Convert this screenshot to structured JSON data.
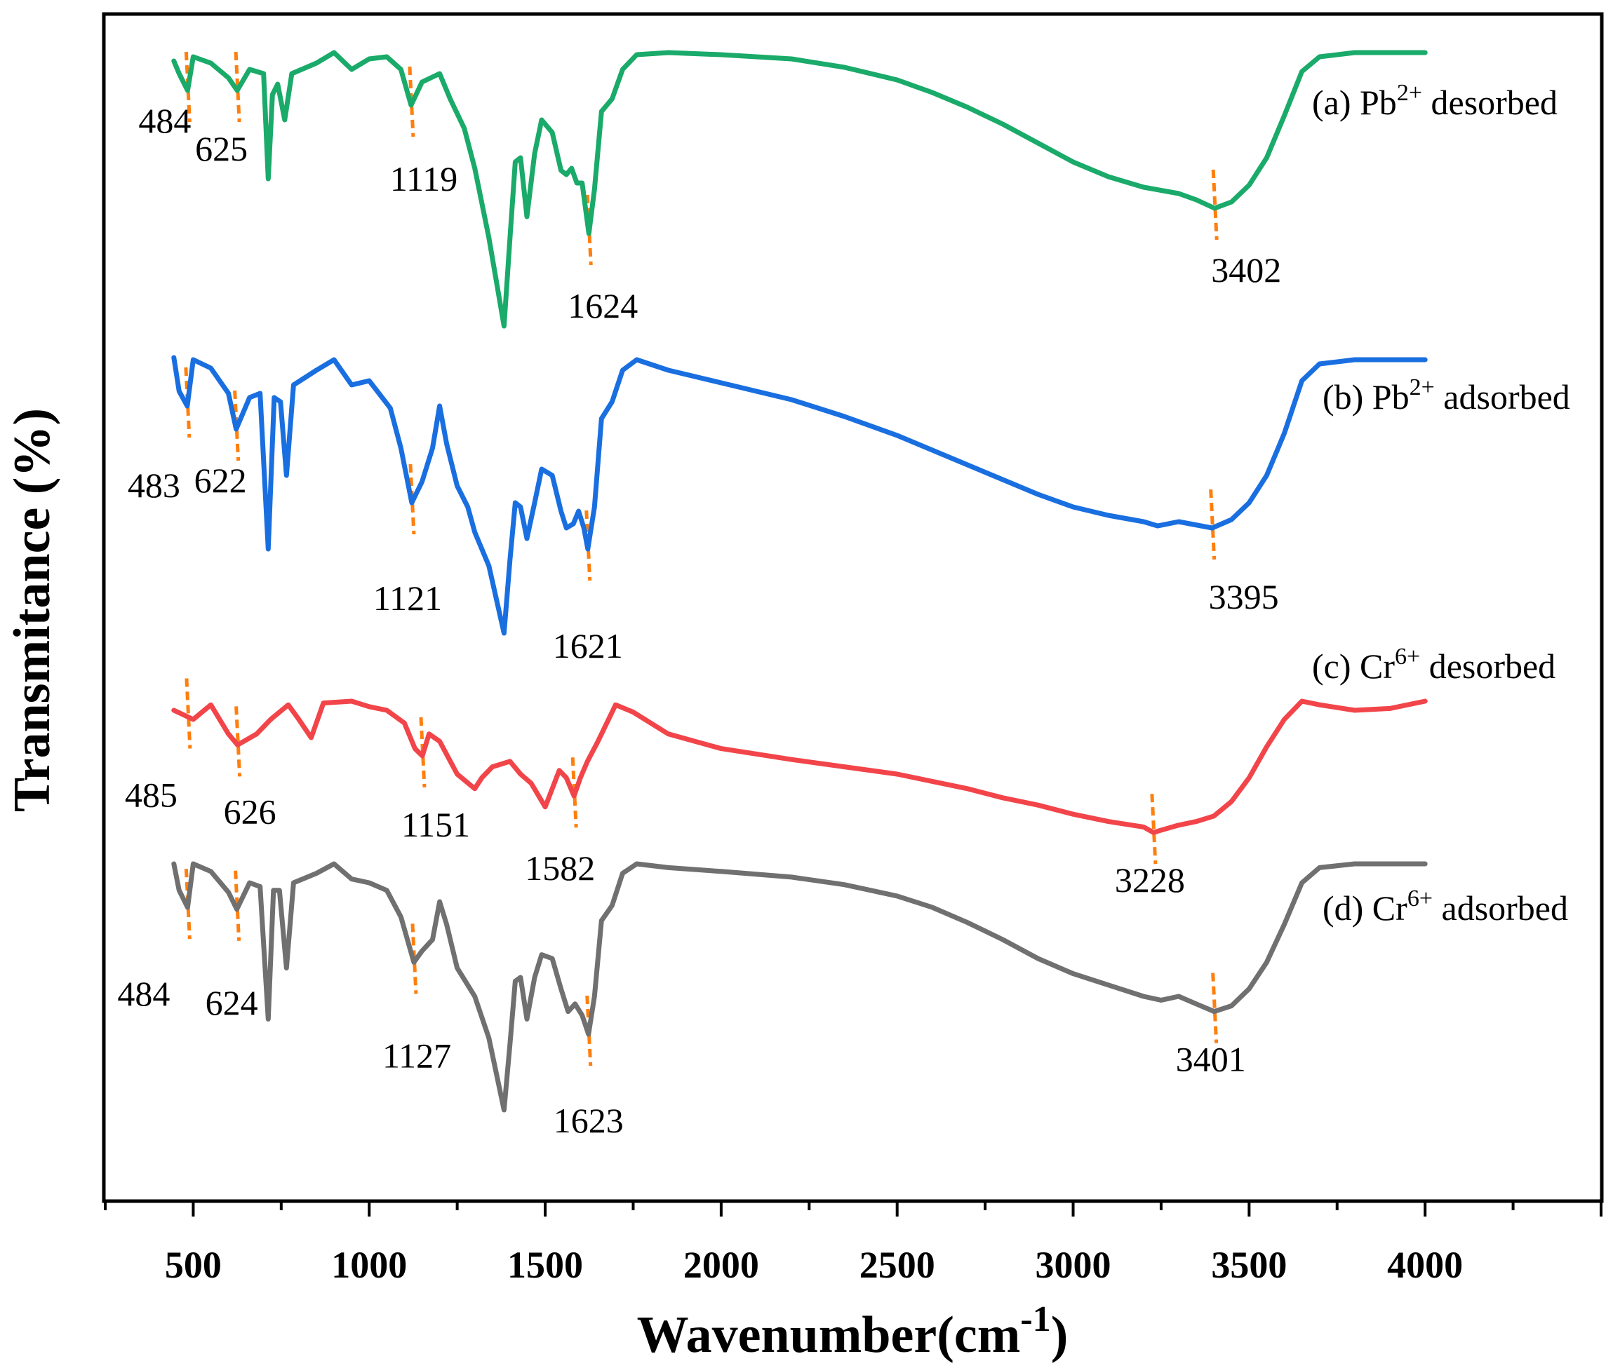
{
  "chart_data": {
    "type": "line",
    "xlabel": "Wavenumber(cm",
    "xlabel_sup": "-1",
    "xlabel_close": ")",
    "ylabel": "Transmitance (%)",
    "xlim": [
      250,
      4500
    ],
    "xticks": [
      "500",
      "1000",
      "1500",
      "2000",
      "2500",
      "3000",
      "3500",
      "4000"
    ],
    "xtick_values": [
      500,
      1000,
      1500,
      2000,
      2500,
      3000,
      3500,
      4000
    ],
    "marker_color": "#ff7f0e",
    "series": [
      {
        "name": "(a) Pb2+ desorbed",
        "label_prefix": "(a) Pb",
        "label_sup": "2+",
        "label_suffix": " desorbed",
        "color": "#1aaa6a",
        "points": [
          [
            445,
            4
          ],
          [
            460,
            10
          ],
          [
            484,
            18
          ],
          [
            500,
            2
          ],
          [
            550,
            5
          ],
          [
            600,
            12
          ],
          [
            625,
            18
          ],
          [
            660,
            8
          ],
          [
            700,
            10
          ],
          [
            713,
            60
          ],
          [
            725,
            20
          ],
          [
            740,
            15
          ],
          [
            760,
            32
          ],
          [
            780,
            10
          ],
          [
            850,
            5
          ],
          [
            900,
            0
          ],
          [
            950,
            8
          ],
          [
            1000,
            3
          ],
          [
            1050,
            2
          ],
          [
            1090,
            8
          ],
          [
            1119,
            25
          ],
          [
            1150,
            14
          ],
          [
            1200,
            10
          ],
          [
            1230,
            22
          ],
          [
            1270,
            36
          ],
          [
            1300,
            55
          ],
          [
            1340,
            88
          ],
          [
            1383,
            130
          ],
          [
            1400,
            88
          ],
          [
            1415,
            52
          ],
          [
            1430,
            50
          ],
          [
            1448,
            78
          ],
          [
            1470,
            48
          ],
          [
            1490,
            32
          ],
          [
            1520,
            38
          ],
          [
            1545,
            56
          ],
          [
            1560,
            58
          ],
          [
            1575,
            55
          ],
          [
            1590,
            62
          ],
          [
            1605,
            62
          ],
          [
            1624,
            86
          ],
          [
            1640,
            65
          ],
          [
            1660,
            28
          ],
          [
            1690,
            22
          ],
          [
            1720,
            8
          ],
          [
            1760,
            1
          ],
          [
            1850,
            0
          ],
          [
            2000,
            1
          ],
          [
            2200,
            3
          ],
          [
            2350,
            7
          ],
          [
            2500,
            13
          ],
          [
            2600,
            19
          ],
          [
            2700,
            26
          ],
          [
            2800,
            34
          ],
          [
            2900,
            43
          ],
          [
            3000,
            52
          ],
          [
            3100,
            59
          ],
          [
            3200,
            64
          ],
          [
            3300,
            67
          ],
          [
            3350,
            70
          ],
          [
            3402,
            74
          ],
          [
            3450,
            71
          ],
          [
            3500,
            63
          ],
          [
            3550,
            50
          ],
          [
            3600,
            30
          ],
          [
            3650,
            9
          ],
          [
            3700,
            2
          ],
          [
            3800,
            0
          ],
          [
            4000,
            0
          ]
        ]
      },
      {
        "name": "(b) Pb2+ adsorbed",
        "label_prefix": "(b) Pb",
        "label_sup": "2+",
        "label_suffix": " adsorbed",
        "color": "#1a6fe0",
        "points": [
          [
            445,
            -1
          ],
          [
            460,
            15
          ],
          [
            483,
            22
          ],
          [
            500,
            0
          ],
          [
            550,
            4
          ],
          [
            600,
            16
          ],
          [
            622,
            33
          ],
          [
            660,
            18
          ],
          [
            690,
            16
          ],
          [
            713,
            90
          ],
          [
            730,
            18
          ],
          [
            748,
            20
          ],
          [
            765,
            55
          ],
          [
            785,
            12
          ],
          [
            850,
            5
          ],
          [
            900,
            0
          ],
          [
            950,
            12
          ],
          [
            1000,
            10
          ],
          [
            1060,
            23
          ],
          [
            1090,
            42
          ],
          [
            1121,
            68
          ],
          [
            1150,
            58
          ],
          [
            1180,
            42
          ],
          [
            1200,
            22
          ],
          [
            1220,
            40
          ],
          [
            1250,
            60
          ],
          [
            1280,
            70
          ],
          [
            1300,
            82
          ],
          [
            1340,
            98
          ],
          [
            1383,
            130
          ],
          [
            1400,
            95
          ],
          [
            1415,
            68
          ],
          [
            1430,
            70
          ],
          [
            1448,
            85
          ],
          [
            1470,
            68
          ],
          [
            1490,
            52
          ],
          [
            1520,
            55
          ],
          [
            1545,
            72
          ],
          [
            1560,
            80
          ],
          [
            1580,
            78
          ],
          [
            1595,
            72
          ],
          [
            1610,
            80
          ],
          [
            1621,
            90
          ],
          [
            1640,
            70
          ],
          [
            1660,
            28
          ],
          [
            1690,
            20
          ],
          [
            1720,
            5
          ],
          [
            1760,
            0
          ],
          [
            1850,
            5
          ],
          [
            2000,
            11
          ],
          [
            2200,
            19
          ],
          [
            2350,
            27
          ],
          [
            2500,
            36
          ],
          [
            2600,
            43
          ],
          [
            2700,
            50
          ],
          [
            2800,
            57
          ],
          [
            2900,
            64
          ],
          [
            3000,
            70
          ],
          [
            3100,
            74
          ],
          [
            3200,
            77
          ],
          [
            3240,
            79
          ],
          [
            3300,
            77
          ],
          [
            3395,
            80
          ],
          [
            3450,
            76
          ],
          [
            3500,
            68
          ],
          [
            3550,
            55
          ],
          [
            3600,
            35
          ],
          [
            3650,
            10
          ],
          [
            3700,
            2
          ],
          [
            3800,
            0
          ],
          [
            4000,
            0
          ]
        ]
      },
      {
        "name": "(c) Cr6+ desorbed",
        "label_prefix": "(c) Cr",
        "label_sup": "6+",
        "label_suffix": " desorbed",
        "color": "#f2454a",
        "points": [
          [
            445,
            5
          ],
          [
            500,
            10
          ],
          [
            550,
            2
          ],
          [
            600,
            18
          ],
          [
            626,
            24
          ],
          [
            680,
            18
          ],
          [
            720,
            10
          ],
          [
            770,
            2
          ],
          [
            800,
            10
          ],
          [
            835,
            20
          ],
          [
            870,
            1
          ],
          [
            950,
            0
          ],
          [
            1000,
            3
          ],
          [
            1050,
            5
          ],
          [
            1100,
            12
          ],
          [
            1130,
            26
          ],
          [
            1151,
            30
          ],
          [
            1170,
            18
          ],
          [
            1200,
            22
          ],
          [
            1250,
            40
          ],
          [
            1300,
            48
          ],
          [
            1320,
            42
          ],
          [
            1350,
            36
          ],
          [
            1400,
            33
          ],
          [
            1430,
            40
          ],
          [
            1460,
            45
          ],
          [
            1500,
            58
          ],
          [
            1520,
            48
          ],
          [
            1540,
            38
          ],
          [
            1560,
            42
          ],
          [
            1582,
            52
          ],
          [
            1600,
            42
          ],
          [
            1620,
            33
          ],
          [
            1650,
            22
          ],
          [
            1700,
            2
          ],
          [
            1750,
            6
          ],
          [
            1850,
            18
          ],
          [
            2000,
            26
          ],
          [
            2200,
            32
          ],
          [
            2350,
            36
          ],
          [
            2500,
            40
          ],
          [
            2600,
            44
          ],
          [
            2700,
            48
          ],
          [
            2800,
            53
          ],
          [
            2900,
            57
          ],
          [
            3000,
            62
          ],
          [
            3100,
            66
          ],
          [
            3200,
            69
          ],
          [
            3228,
            72
          ],
          [
            3300,
            68
          ],
          [
            3350,
            66
          ],
          [
            3400,
            63
          ],
          [
            3450,
            55
          ],
          [
            3500,
            42
          ],
          [
            3550,
            25
          ],
          [
            3600,
            10
          ],
          [
            3650,
            0
          ],
          [
            3700,
            2
          ],
          [
            3800,
            5
          ],
          [
            3900,
            4
          ],
          [
            4000,
            0
          ]
        ]
      },
      {
        "name": "(d) Cr6+ adsorbed",
        "label_prefix": "(d) Cr",
        "label_sup": "6+",
        "label_suffix": " adsorbed",
        "color": "#707070",
        "points": [
          [
            445,
            0
          ],
          [
            460,
            14
          ],
          [
            484,
            23
          ],
          [
            500,
            0
          ],
          [
            550,
            4
          ],
          [
            600,
            15
          ],
          [
            624,
            24
          ],
          [
            660,
            10
          ],
          [
            690,
            12
          ],
          [
            713,
            82
          ],
          [
            728,
            14
          ],
          [
            745,
            14
          ],
          [
            765,
            55
          ],
          [
            785,
            10
          ],
          [
            850,
            5
          ],
          [
            900,
            0
          ],
          [
            950,
            8
          ],
          [
            1000,
            10
          ],
          [
            1050,
            14
          ],
          [
            1090,
            28
          ],
          [
            1127,
            52
          ],
          [
            1150,
            46
          ],
          [
            1180,
            40
          ],
          [
            1200,
            20
          ],
          [
            1220,
            32
          ],
          [
            1250,
            55
          ],
          [
            1300,
            70
          ],
          [
            1340,
            92
          ],
          [
            1383,
            130
          ],
          [
            1400,
            95
          ],
          [
            1415,
            62
          ],
          [
            1430,
            60
          ],
          [
            1448,
            82
          ],
          [
            1470,
            60
          ],
          [
            1490,
            48
          ],
          [
            1520,
            50
          ],
          [
            1545,
            66
          ],
          [
            1565,
            78
          ],
          [
            1585,
            74
          ],
          [
            1605,
            80
          ],
          [
            1623,
            90
          ],
          [
            1640,
            70
          ],
          [
            1660,
            30
          ],
          [
            1690,
            22
          ],
          [
            1720,
            5
          ],
          [
            1760,
            0
          ],
          [
            1850,
            2
          ],
          [
            2000,
            4
          ],
          [
            2200,
            7
          ],
          [
            2350,
            11
          ],
          [
            2500,
            17
          ],
          [
            2600,
            23
          ],
          [
            2700,
            31
          ],
          [
            2800,
            40
          ],
          [
            2900,
            50
          ],
          [
            3000,
            58
          ],
          [
            3100,
            64
          ],
          [
            3200,
            70
          ],
          [
            3250,
            72
          ],
          [
            3300,
            70
          ],
          [
            3350,
            74
          ],
          [
            3401,
            78
          ],
          [
            3450,
            75
          ],
          [
            3500,
            66
          ],
          [
            3550,
            52
          ],
          [
            3600,
            32
          ],
          [
            3650,
            10
          ],
          [
            3700,
            2
          ],
          [
            3800,
            0
          ],
          [
            4000,
            0
          ]
        ]
      }
    ],
    "peak_labels": [
      {
        "series": 0,
        "text": "484",
        "wn": 484
      },
      {
        "series": 0,
        "text": "625",
        "wn": 625
      },
      {
        "series": 0,
        "text": "1119",
        "wn": 1119
      },
      {
        "series": 0,
        "text": "1624",
        "wn": 1624
      },
      {
        "series": 0,
        "text": "3402",
        "wn": 3402
      },
      {
        "series": 1,
        "text": "483",
        "wn": 483
      },
      {
        "series": 1,
        "text": "622",
        "wn": 622
      },
      {
        "series": 1,
        "text": "1121",
        "wn": 1121
      },
      {
        "series": 1,
        "text": "1621",
        "wn": 1621
      },
      {
        "series": 1,
        "text": "3395",
        "wn": 3395
      },
      {
        "series": 2,
        "text": "485",
        "wn": 485
      },
      {
        "series": 2,
        "text": "626",
        "wn": 626
      },
      {
        "series": 2,
        "text": "1151",
        "wn": 1151
      },
      {
        "series": 2,
        "text": "1582",
        "wn": 1582
      },
      {
        "series": 2,
        "text": "3228",
        "wn": 3228
      },
      {
        "series": 3,
        "text": "484",
        "wn": 484
      },
      {
        "series": 3,
        "text": "624",
        "wn": 624
      },
      {
        "series": 3,
        "text": "1127",
        "wn": 1127
      },
      {
        "series": 3,
        "text": "1623",
        "wn": 1623
      },
      {
        "series": 3,
        "text": "3401",
        "wn": 3401
      }
    ]
  }
}
